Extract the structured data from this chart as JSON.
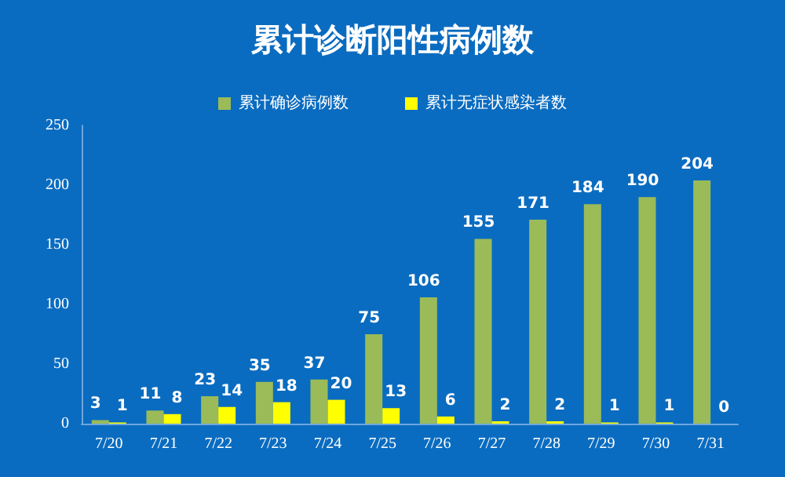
{
  "chart_data": {
    "type": "bar",
    "title": "累计诊断阳性病例数",
    "categories": [
      "7/20",
      "7/21",
      "7/22",
      "7/23",
      "7/24",
      "7/25",
      "7/26",
      "7/27",
      "7/28",
      "7/29",
      "7/30",
      "7/31"
    ],
    "series": [
      {
        "name": "累计确诊病例数",
        "color": "#9bbb59",
        "values": [
          3,
          11,
          23,
          35,
          37,
          75,
          106,
          155,
          171,
          184,
          190,
          204
        ]
      },
      {
        "name": "累计无症状感染者数",
        "color": "#ffff00",
        "values": [
          1,
          8,
          14,
          18,
          20,
          13,
          6,
          2,
          2,
          1,
          1,
          0
        ]
      }
    ],
    "ylim": [
      0,
      250
    ],
    "yticks": [
      0,
      50,
      100,
      150,
      200,
      250
    ],
    "grid": false,
    "legend": "top",
    "data_labels": true
  }
}
